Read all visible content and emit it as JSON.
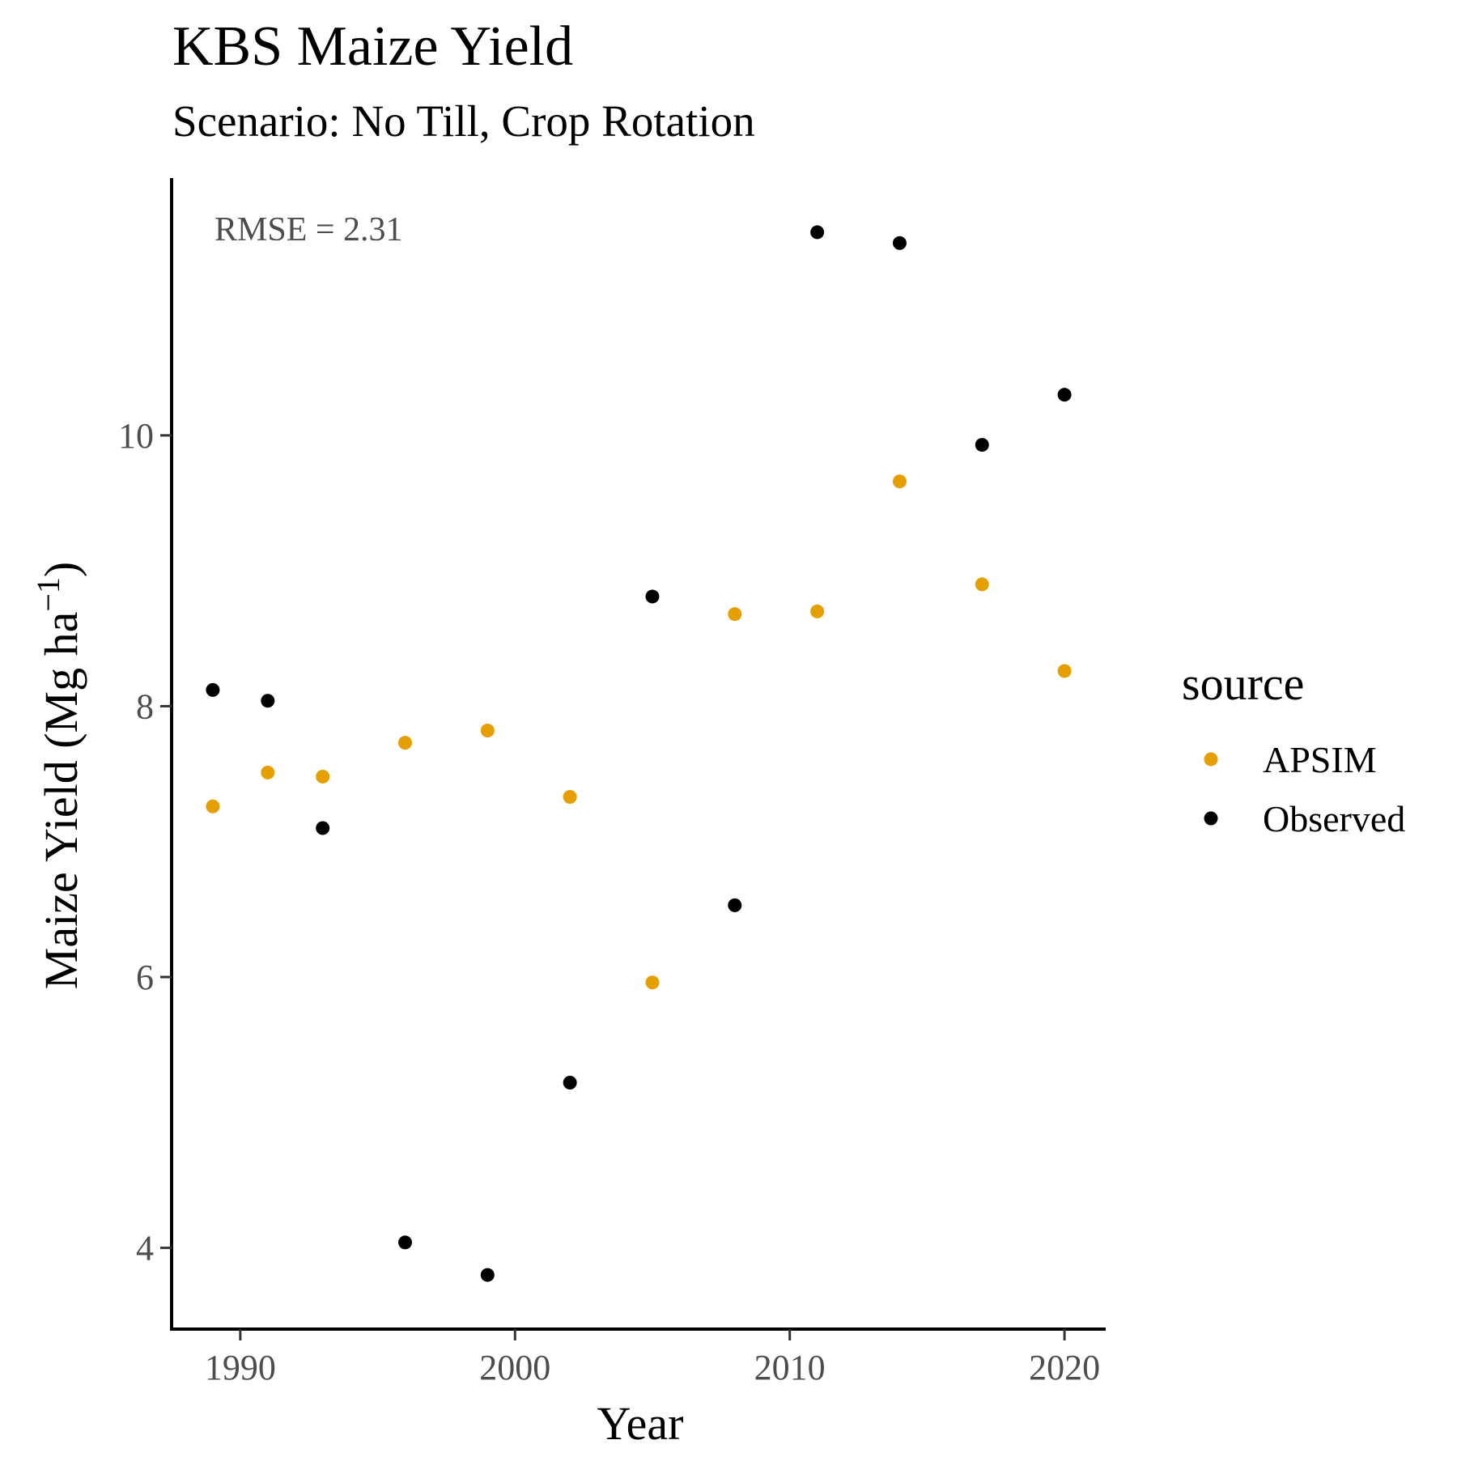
{
  "title": "KBS Maize Yield",
  "subtitle": "Scenario: No Till, Crop Rotation",
  "annotation": "RMSE = 2.31",
  "chart_data": {
    "type": "scatter",
    "title": "KBS Maize Yield",
    "subtitle": "Scenario: No Till, Crop Rotation",
    "xlabel": "Year",
    "ylabel_main": "Maize Yield (Mg ha",
    "ylabel_sup": "−1",
    "ylabel_close": ")",
    "xlim": [
      1987.5,
      2021.5
    ],
    "ylim": [
      3.4,
      11.9
    ],
    "xticks": [
      1990,
      2000,
      2010,
      2020
    ],
    "xtick_labels": [
      "1990",
      "2000",
      "2010",
      "2020"
    ],
    "yticks": [
      4,
      6,
      8,
      10
    ],
    "ytick_labels": [
      "4",
      "6",
      "8",
      "10"
    ],
    "grid": false,
    "legend_title": "source",
    "legend_position": "right",
    "series": [
      {
        "name": "APSIM",
        "color": "#E69F00",
        "x": [
          1989,
          1991,
          1993,
          1996,
          1999,
          2002,
          2005,
          2008,
          2011,
          2014,
          2017,
          2020
        ],
        "y": [
          7.26,
          7.51,
          7.48,
          7.73,
          7.82,
          7.33,
          5.96,
          8.68,
          8.7,
          9.66,
          8.9,
          8.26
        ]
      },
      {
        "name": "Observed",
        "color": "#000000",
        "x": [
          1989,
          1991,
          1993,
          1996,
          1999,
          2002,
          2005,
          2008,
          2011,
          2014,
          2017,
          2020
        ],
        "y": [
          8.12,
          8.04,
          7.1,
          4.04,
          3.8,
          5.22,
          8.81,
          6.53,
          11.5,
          11.42,
          9.93,
          10.3
        ]
      }
    ]
  }
}
